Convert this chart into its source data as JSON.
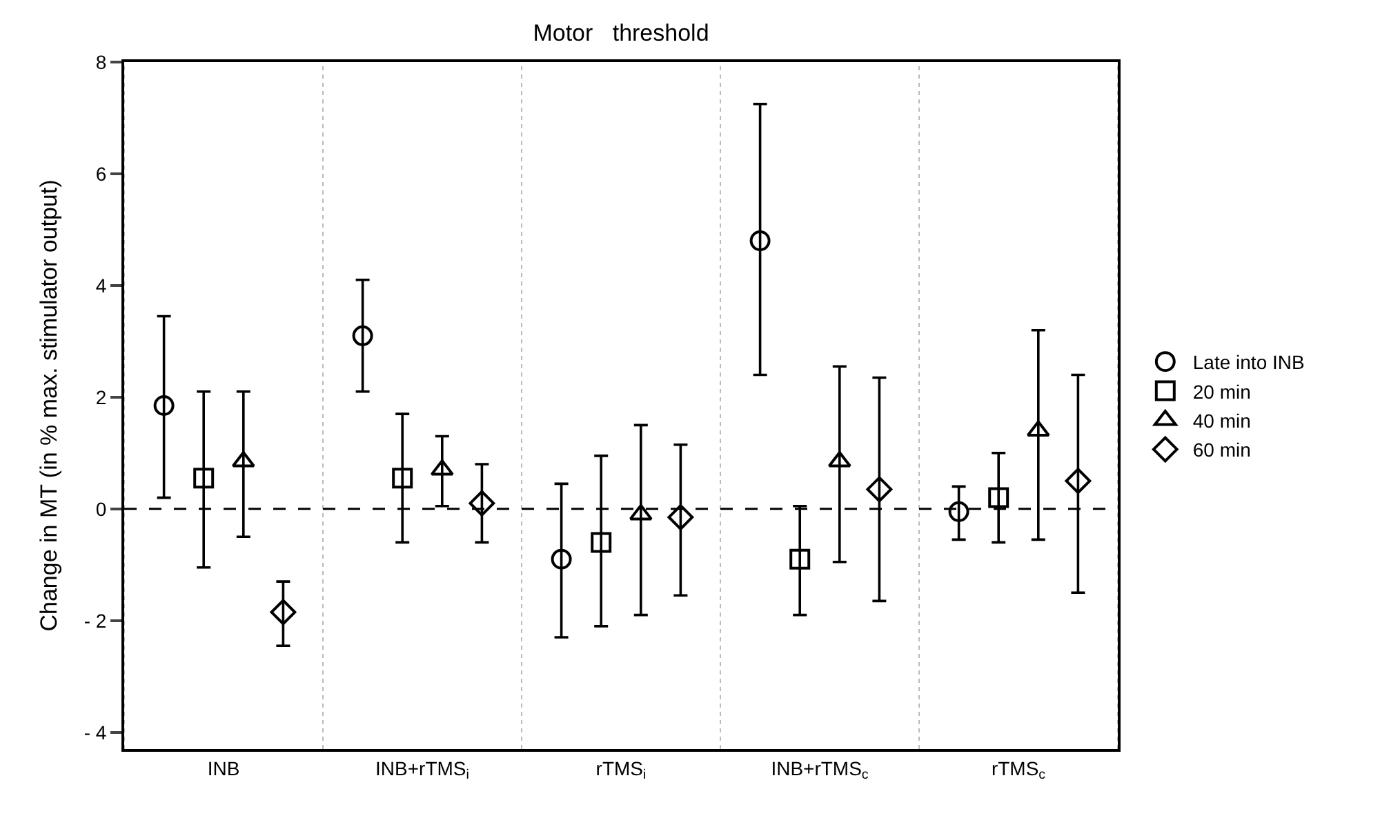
{
  "chart_data": {
    "type": "scatter",
    "title": "Motor   threshold",
    "ylabel": "Change in MT (in % max. stimulator output)",
    "categories": [
      "INB",
      "INB+rTMS$_{i}$",
      "rTMS$_{i}$",
      "INB+rTMS$_{c}$",
      "rTMS$_{c}$"
    ],
    "series": [
      {
        "name": "Late into INB",
        "color": "#000000",
        "marker": "circle",
        "values": [
          1.85,
          3.1,
          -0.9,
          4.8,
          -0.05
        ],
        "errors": [
          [
            0.2,
            3.45
          ],
          [
            2.1,
            4.1
          ],
          [
            -2.3,
            0.45
          ],
          [
            2.4,
            7.25
          ],
          [
            -0.55,
            0.4
          ]
        ]
      },
      {
        "name": "20 min",
        "color": "#000000",
        "marker": "square",
        "values": [
          0.55,
          0.55,
          -0.6,
          -0.9,
          0.2
        ],
        "errors": [
          [
            -1.05,
            2.1
          ],
          [
            -0.6,
            1.7
          ],
          [
            -2.1,
            0.95
          ],
          [
            -1.9,
            0.05
          ],
          [
            -0.6,
            1.0
          ]
        ]
      },
      {
        "name": "40 min",
        "color": "#000000",
        "marker": "triangle",
        "values": [
          0.85,
          0.7,
          -0.1,
          0.85,
          1.4
        ],
        "errors": [
          [
            -0.5,
            2.1
          ],
          [
            0.05,
            1.3
          ],
          [
            -1.9,
            1.5
          ],
          [
            -0.95,
            2.55
          ],
          [
            -0.55,
            3.2
          ]
        ]
      },
      {
        "name": "60 min",
        "color": "#000000",
        "marker": "diamond",
        "values": [
          -1.85,
          0.1,
          -0.15,
          0.35,
          0.5
        ],
        "errors": [
          [
            -2.45,
            -1.3
          ],
          [
            -0.6,
            0.8
          ],
          [
            -1.55,
            1.15
          ],
          [
            -1.65,
            2.35
          ],
          [
            -1.5,
            2.4
          ]
        ]
      }
    ],
    "ylim": [
      -4.3,
      8
    ],
    "yticks": [
      {
        "value": -4,
        "label": "- 4"
      },
      {
        "value": -2,
        "label": "- 2"
      },
      0,
      2,
      4,
      6,
      8
    ],
    "ref_lines": [
      {
        "axis": "y",
        "value": 0,
        "line_style": "dashed",
        "color": "#000000"
      }
    ],
    "grid": false,
    "legend": "right"
  }
}
